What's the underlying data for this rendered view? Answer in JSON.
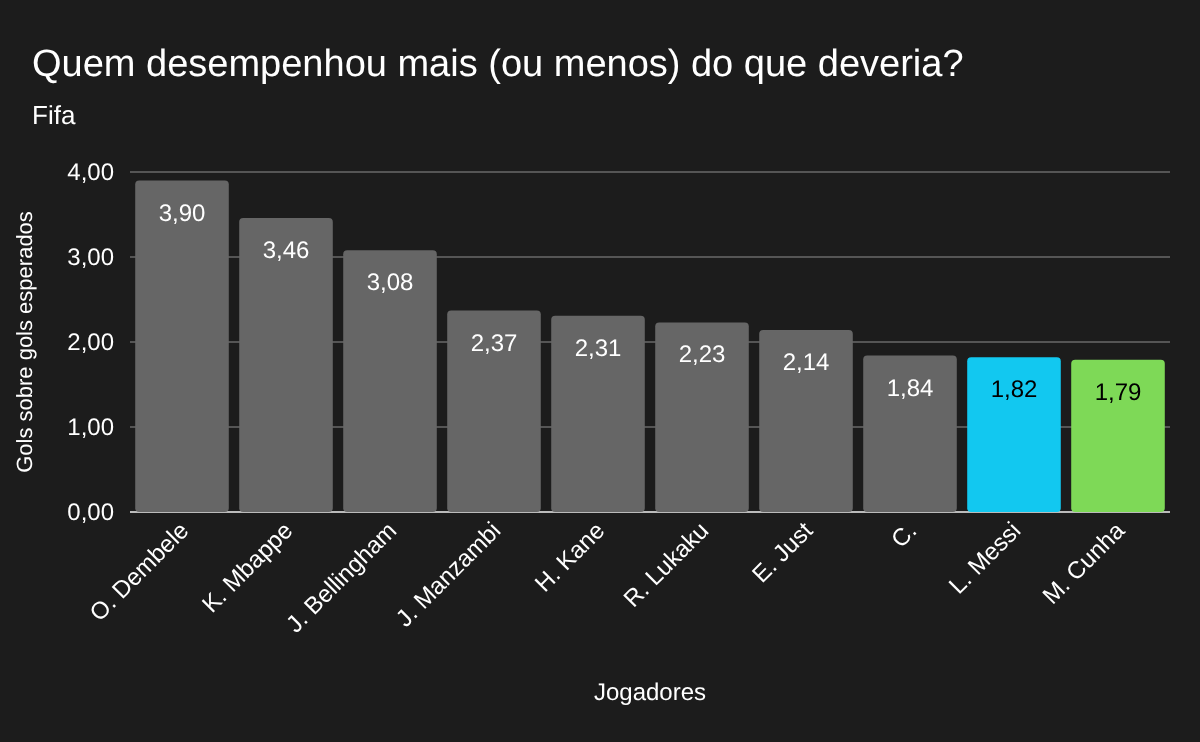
{
  "chart_data": {
    "type": "bar",
    "title": "Quem desempenhou mais (ou menos) do que deveria?",
    "subtitle": "Fifa",
    "xlabel": "Jogadores",
    "ylabel": "Gols sobre gols esperados",
    "categories": [
      "O. Dembele",
      "K. Mbappe",
      "J. Bellingham",
      "J. Manzambi",
      "H. Kane",
      "R. Lukaku",
      "E. Just",
      "C.",
      "L. Messi",
      "M. Cunha"
    ],
    "values": [
      3.9,
      3.46,
      3.08,
      2.37,
      2.31,
      2.23,
      2.14,
      1.84,
      1.82,
      1.79
    ],
    "colors": [
      "#666666",
      "#666666",
      "#666666",
      "#666666",
      "#666666",
      "#666666",
      "#666666",
      "#666666",
      "#12c8f0",
      "#7ed957"
    ],
    "ylim": [
      0,
      4
    ],
    "value_labels": [
      "3,90",
      "3,46",
      "3,08",
      "2,37",
      "2,31",
      "2,23",
      "2,14",
      "1,84",
      "1,82",
      "1,79"
    ],
    "yticks": [
      {
        "value": 0,
        "label": "0,00"
      },
      {
        "value": 1,
        "label": "1,00"
      },
      {
        "value": 2,
        "label": "2,00"
      },
      {
        "value": 3,
        "label": "3,00"
      },
      {
        "value": 4,
        "label": "4,00"
      }
    ],
    "grid": "y"
  }
}
